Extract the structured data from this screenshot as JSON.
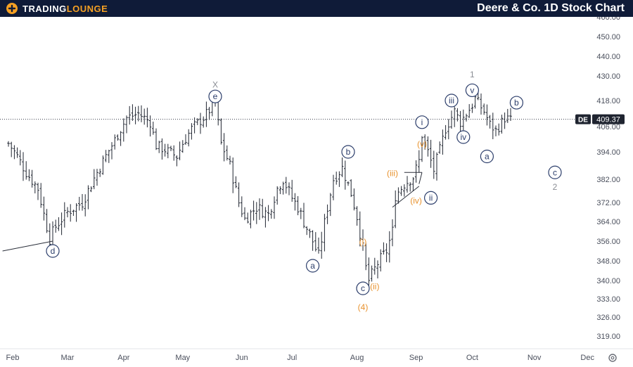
{
  "header": {
    "logo_part1": "TRADING",
    "logo_part2": "LOUNGE",
    "title": "Deere & Co. 1D Stock Chart"
  },
  "colors": {
    "header_bg": "#0f1b38",
    "brand_orange": "#f5a023",
    "bar": "#1f2430",
    "wave_navy": "#2c3e6b",
    "wave_orange": "#e8922e",
    "wave_gray": "#8a8d94"
  },
  "chart_data": {
    "type": "ohlc",
    "ticker": "DE",
    "last_price": 409.37,
    "last_price_label": "409.37",
    "y_ticks": [
      319,
      326,
      333,
      340,
      348,
      356,
      364,
      372,
      382,
      394,
      406,
      418,
      430,
      440,
      450,
      460
    ],
    "y_tick_labels": [
      "319.00",
      "326.00",
      "333.00",
      "340.00",
      "348.00",
      "356.00",
      "364.00",
      "372.00",
      "382.00",
      "394.00",
      "406.00",
      "418.00",
      "430.00",
      "440.00",
      "450.00",
      "460.00"
    ],
    "x_ticks": [
      {
        "label": "Feb",
        "bar": 0
      },
      {
        "label": "Mar",
        "bar": 20
      },
      {
        "label": "Apr",
        "bar": 39
      },
      {
        "label": "May",
        "bar": 59
      },
      {
        "label": "Jun",
        "bar": 79
      },
      {
        "label": "Jul",
        "bar": 96
      },
      {
        "label": "Aug",
        "bar": 118
      },
      {
        "label": "Sep",
        "bar": 138
      },
      {
        "label": "Oct",
        "bar": 157
      },
      {
        "label": "Nov",
        "bar": 178
      },
      {
        "label": "Dec",
        "bar": 196
      }
    ],
    "price_path": [
      [
        0,
        398
      ],
      [
        3,
        392
      ],
      [
        6,
        385
      ],
      [
        10,
        378
      ],
      [
        12,
        367
      ],
      [
        14,
        357
      ],
      [
        16,
        362
      ],
      [
        20,
        368
      ],
      [
        25,
        372
      ],
      [
        30,
        385
      ],
      [
        35,
        397
      ],
      [
        40,
        410
      ],
      [
        44,
        412
      ],
      [
        48,
        408
      ],
      [
        50,
        397
      ],
      [
        53,
        395
      ],
      [
        57,
        392
      ],
      [
        59,
        398
      ],
      [
        62,
        405
      ],
      [
        66,
        410
      ],
      [
        70,
        417
      ],
      [
        72,
        398
      ],
      [
        75,
        388
      ],
      [
        78,
        372
      ],
      [
        80,
        365
      ],
      [
        84,
        370
      ],
      [
        88,
        367
      ],
      [
        91,
        378
      ],
      [
        93,
        382
      ],
      [
        96,
        374
      ],
      [
        98,
        370
      ],
      [
        100,
        364
      ],
      [
        103,
        356
      ],
      [
        105,
        350
      ],
      [
        108,
        370
      ],
      [
        110,
        382
      ],
      [
        113,
        387
      ],
      [
        116,
        376
      ],
      [
        118,
        366
      ],
      [
        120,
        353
      ],
      [
        121,
        345
      ],
      [
        122,
        340
      ],
      [
        125,
        347
      ],
      [
        128,
        352
      ],
      [
        130,
        360
      ],
      [
        131,
        375
      ],
      [
        134,
        380
      ],
      [
        137,
        383
      ],
      [
        139,
        390
      ],
      [
        140,
        402
      ],
      [
        142,
        394
      ],
      [
        144,
        386
      ],
      [
        146,
        395
      ],
      [
        148,
        405
      ],
      [
        151,
        413
      ],
      [
        153,
        408
      ],
      [
        155,
        412
      ],
      [
        157,
        416
      ],
      [
        158,
        419
      ],
      [
        161,
        413
      ],
      [
        163,
        407
      ],
      [
        165,
        404
      ],
      [
        168,
        410
      ],
      [
        170,
        409
      ]
    ],
    "trendlines": [
      {
        "points": [
          [
            -2,
            352
          ],
          [
            15,
            356
          ]
        ]
      },
      {
        "points": [
          [
            130,
            370
          ],
          [
            139,
            379
          ]
        ]
      },
      {
        "points": [
          [
            134,
            385
          ],
          [
            140,
            385
          ]
        ]
      },
      {
        "points": [
          [
            139,
            380
          ],
          [
            140,
            385
          ]
        ]
      }
    ],
    "wave_labels": [
      {
        "text": "d",
        "bar": 15,
        "price": 352,
        "style": "circle",
        "color": "navy"
      },
      {
        "text": "X",
        "bar": 70,
        "price": 426,
        "style": "plain",
        "color": "gray"
      },
      {
        "text": "e",
        "bar": 70,
        "price": 420,
        "style": "circle",
        "color": "navy"
      },
      {
        "text": "a",
        "bar": 103,
        "price": 346,
        "style": "circle",
        "color": "navy"
      },
      {
        "text": "b",
        "bar": 115,
        "price": 394,
        "style": "circle",
        "color": "navy"
      },
      {
        "text": "(i)",
        "bar": 120,
        "price": 356,
        "style": "plain",
        "color": "orange"
      },
      {
        "text": "c",
        "bar": 120,
        "price": 337,
        "style": "circle",
        "color": "navy"
      },
      {
        "text": "(ii)",
        "bar": 124,
        "price": 338,
        "style": "plain",
        "color": "orange"
      },
      {
        "text": "(4)",
        "bar": 120,
        "price": 330,
        "style": "plain",
        "color": "orange"
      },
      {
        "text": "(iii)",
        "bar": 130,
        "price": 385,
        "style": "plain",
        "color": "orange"
      },
      {
        "text": "i",
        "bar": 140,
        "price": 408,
        "style": "circle",
        "color": "navy"
      },
      {
        "text": "(v)",
        "bar": 140,
        "price": 398,
        "style": "plain",
        "color": "orange"
      },
      {
        "text": "(iv)",
        "bar": 138,
        "price": 373,
        "style": "plain",
        "color": "orange"
      },
      {
        "text": "ii",
        "bar": 143,
        "price": 374,
        "style": "circle",
        "color": "navy"
      },
      {
        "text": "iii",
        "bar": 150,
        "price": 418,
        "style": "circle",
        "color": "navy"
      },
      {
        "text": "iv",
        "bar": 154,
        "price": 401,
        "style": "circle",
        "color": "navy"
      },
      {
        "text": "1",
        "bar": 157,
        "price": 431,
        "style": "plain",
        "color": "gray"
      },
      {
        "text": "v",
        "bar": 157,
        "price": 423,
        "style": "circle",
        "color": "navy"
      },
      {
        "text": "a",
        "bar": 162,
        "price": 392,
        "style": "circle",
        "color": "navy"
      },
      {
        "text": "b",
        "bar": 172,
        "price": 417,
        "style": "circle",
        "color": "navy"
      },
      {
        "text": "c",
        "bar": 185,
        "price": 385,
        "style": "circle",
        "color": "navy"
      },
      {
        "text": "2",
        "bar": 185,
        "price": 379,
        "style": "plain",
        "color": "gray"
      }
    ]
  }
}
